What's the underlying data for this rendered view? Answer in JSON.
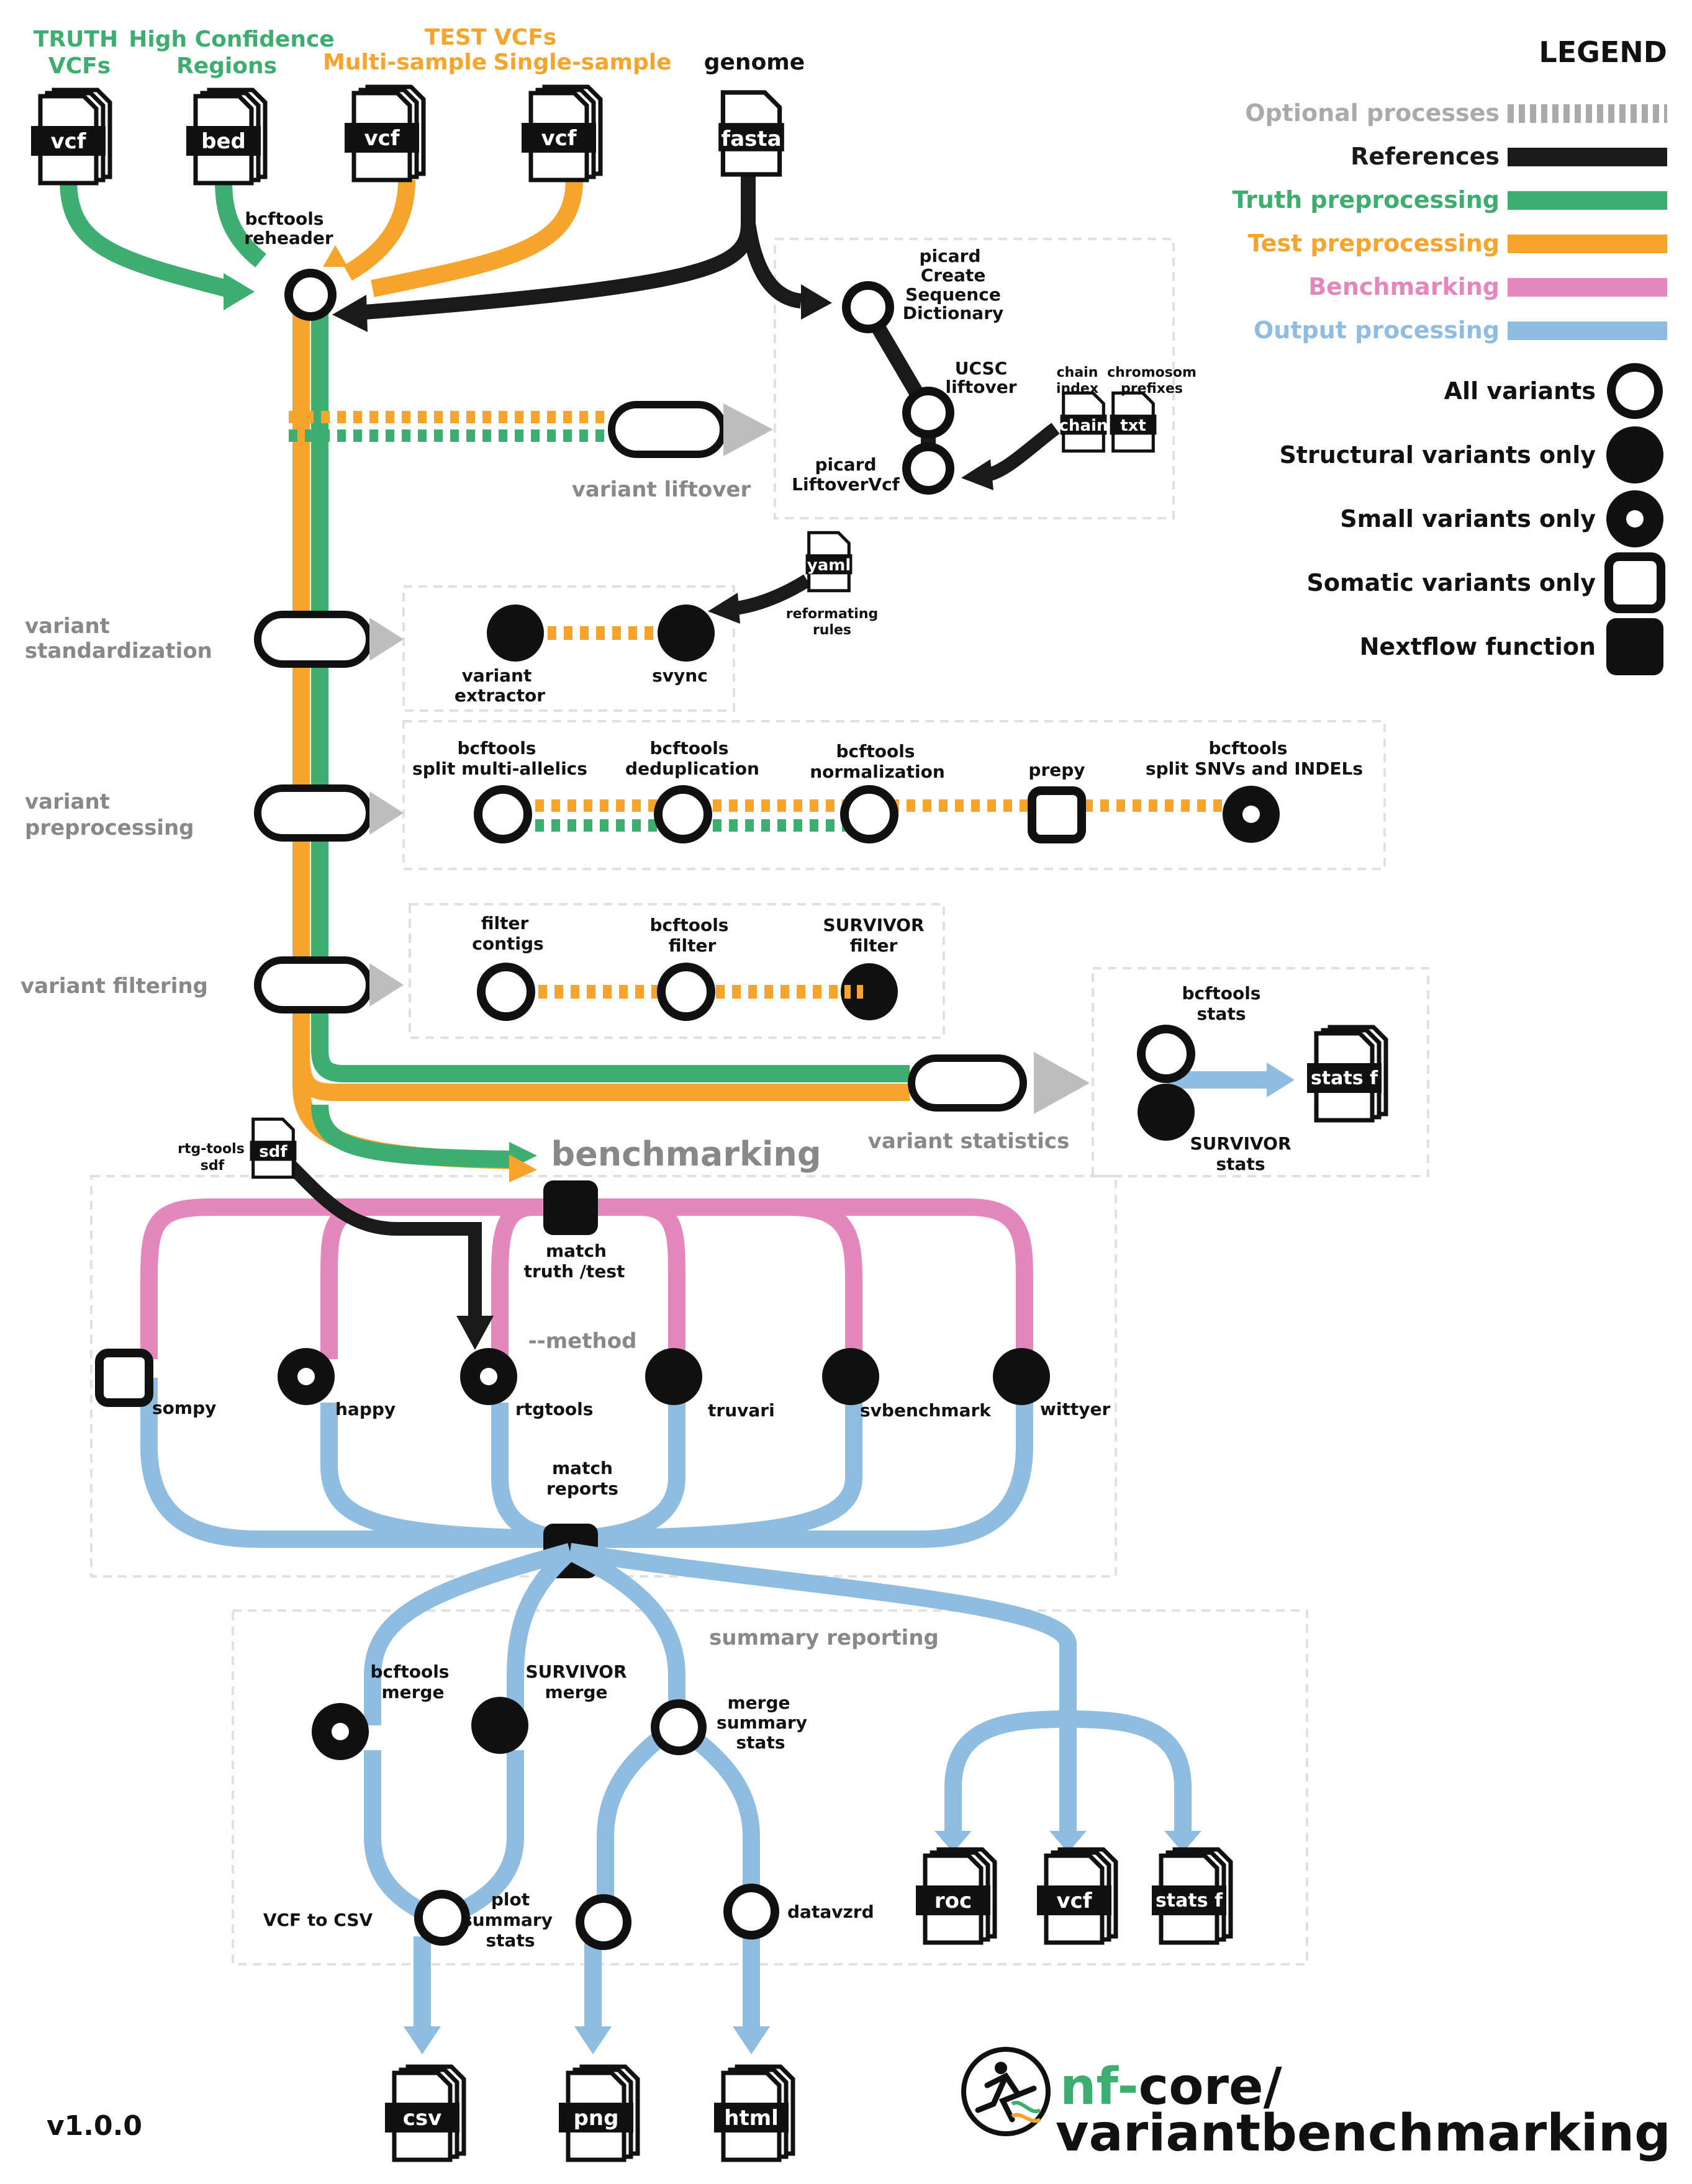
{
  "colors": {
    "optional": "#aaaaaa",
    "references": "#1a1a1a",
    "truth": "#3dae6f",
    "test": "#f7a42c",
    "benchmarking": "#e387bc",
    "output": "#8fbde2",
    "section_label": "#888888"
  },
  "inputs": {
    "truth_title": "TRUTH",
    "truth_sub": "VCFs",
    "hc_title": "High Confidence",
    "hc_sub": "Regions",
    "test_title": "TEST VCFs",
    "test_multi": "Multi-sample",
    "test_single": "Single-sample",
    "genome": "genome",
    "file_vcf": "vcf",
    "file_bed": "bed",
    "file_fasta": "fasta"
  },
  "legend": {
    "title": "LEGEND",
    "lines": [
      {
        "label": "Optional processes",
        "style": "dashed-grey"
      },
      {
        "label": "References",
        "style": "black"
      },
      {
        "label": "Truth preprocessing",
        "style": "green"
      },
      {
        "label": "Test preprocessing",
        "style": "orange"
      },
      {
        "label": "Benchmarking",
        "style": "pink"
      },
      {
        "label": "Output processing",
        "style": "blue"
      }
    ],
    "symbols": [
      {
        "label": "All variants",
        "icon": "hollow-circle-icon"
      },
      {
        "label": "Structural variants only",
        "icon": "filled-circle-icon"
      },
      {
        "label": "Small variants only",
        "icon": "dot-circle-icon"
      },
      {
        "label": "Somatic variants only",
        "icon": "hollow-square-icon"
      },
      {
        "label": "Nextflow function",
        "icon": "filled-square-icon"
      }
    ]
  },
  "liftover": {
    "reheader_1": "bcftools",
    "reheader_2": "reheader",
    "picard_dict_1": "picard",
    "picard_dict_2": "Create",
    "picard_dict_3": "Sequence",
    "picard_dict_4": "Dictionary",
    "ucsc_1": "UCSC",
    "ucsc_2": "liftover",
    "picard_lift_1": "picard",
    "picard_lift_2": "LiftoverVcf",
    "chain_index_1": "chain",
    "chain_index_2": "index",
    "chrom_1": "chromosom",
    "chrom_2": "prefixes",
    "file_chain": "chain",
    "file_txt": "txt",
    "section": "variant liftover"
  },
  "standardization": {
    "section_1": "variant",
    "section_2": "standardization",
    "extractor_1": "variant",
    "extractor_2": "extractor",
    "svync": "svync",
    "file_yaml": "yaml",
    "rules_1": "reformating",
    "rules_2": "rules"
  },
  "preprocessing": {
    "section_1": "variant",
    "section_2": "preprocessing",
    "split_1": "bcftools",
    "split_2": "split multi-allelics",
    "dedup_1": "bcftools",
    "dedup_2": "deduplication",
    "norm_1": "bcftools",
    "norm_2": "normalization",
    "prepy": "prepy",
    "snv_1": "bcftools",
    "snv_2": "split SNVs and INDELs"
  },
  "filtering": {
    "section": "variant  filtering",
    "contigs_1": "filter",
    "contigs_2": "contigs",
    "bcf_1": "bcftools",
    "bcf_2": "filter",
    "surv_1": "SURVIVOR",
    "surv_2": "filter"
  },
  "statistics": {
    "section": "variant statistics",
    "bcf_1": "bcftools",
    "bcf_2": "stats",
    "surv_1": "SURVIVOR",
    "surv_2": "stats",
    "file": "stats f"
  },
  "benchmarking": {
    "title": "benchmarking",
    "rtg_1": "rtg-tools",
    "rtg_2": "sdf",
    "file_sdf": "sdf",
    "match_1": "match",
    "match_2": "truth /test",
    "method": "--method",
    "tools": [
      "sompy",
      "happy",
      "rtgtools",
      "truvari",
      "svbenchmark",
      "wittyer"
    ],
    "reports_1": "match",
    "reports_2": "reports"
  },
  "reporting": {
    "section": "summary reporting",
    "bcf_merge_1": "bcftools",
    "bcf_merge_2": "merge",
    "surv_merge_1": "SURVIVOR",
    "surv_merge_2": "merge",
    "summary_1": "merge",
    "summary_2": "summary",
    "summary_3": "stats",
    "vcf_csv": "VCF to CSV",
    "plot_1": "plot",
    "plot_2": "summary",
    "plot_3": "stats",
    "datavzrd": "datavzrd",
    "files": {
      "roc": "roc",
      "vcf": "vcf",
      "stats": "stats f",
      "csv": "csv",
      "png": "png",
      "html": "html"
    }
  },
  "footer": {
    "version": "v1.0.0",
    "brand_nf": "nf-",
    "brand_core": "core/",
    "brand_pipeline": "variantbenchmarking"
  }
}
